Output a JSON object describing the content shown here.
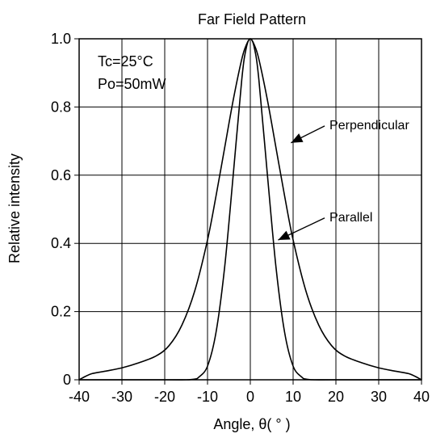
{
  "chart_data": {
    "type": "line",
    "title": "Far Field Pattern",
    "xlabel": "Angle, θ( ° )",
    "ylabel": "Relative intensity",
    "xlim": [
      -40,
      40
    ],
    "ylim": [
      0,
      1.0
    ],
    "x_ticks": [
      "-40",
      "-30",
      "-20",
      "-10",
      "0",
      "10",
      "20",
      "30",
      "40"
    ],
    "y_ticks": [
      "0",
      "0.2",
      "0.4",
      "0.6",
      "0.8",
      "1.0"
    ],
    "grid": true,
    "annotations": [
      "Tc=25°C",
      "Po=50mW"
    ],
    "series": [
      {
        "name": "Perpendicular",
        "x": [
          -40,
          -38.5,
          -37,
          -34,
          -30,
          -26,
          -22,
          -19,
          -16,
          -13,
          -10,
          -8,
          -6,
          -4,
          -2,
          -1,
          0,
          1,
          2,
          4,
          6,
          8,
          10,
          13,
          16,
          19,
          22,
          26,
          30,
          34,
          37,
          38.5,
          40
        ],
        "y": [
          0.0,
          0.01,
          0.018,
          0.025,
          0.035,
          0.05,
          0.07,
          0.1,
          0.16,
          0.26,
          0.41,
          0.54,
          0.68,
          0.82,
          0.94,
          0.98,
          1.0,
          0.98,
          0.94,
          0.82,
          0.68,
          0.54,
          0.41,
          0.26,
          0.16,
          0.1,
          0.07,
          0.05,
          0.035,
          0.025,
          0.018,
          0.01,
          0.0
        ]
      },
      {
        "name": "Parallel",
        "x": [
          -40,
          -20,
          -15,
          -13,
          -12,
          -10,
          -8,
          -6,
          -4,
          -2,
          -1,
          0,
          1,
          2,
          4,
          6,
          8,
          10,
          12,
          13,
          15,
          20,
          40
        ],
        "y": [
          0.0,
          0.0,
          0.0,
          0.002,
          0.008,
          0.04,
          0.14,
          0.33,
          0.6,
          0.88,
          0.97,
          1.0,
          0.97,
          0.88,
          0.6,
          0.33,
          0.14,
          0.04,
          0.008,
          0.002,
          0.0,
          0.0,
          0.0
        ]
      }
    ],
    "callouts": [
      {
        "series": "Perpendicular",
        "label": "Perpendicular",
        "target_x": 9.5,
        "target_y": 0.695,
        "text_x": 18.5,
        "text_y": 0.735
      },
      {
        "series": "Parallel",
        "label": "Parallel",
        "target_x": 6.5,
        "target_y": 0.41,
        "text_x": 18.5,
        "text_y": 0.465
      }
    ]
  }
}
